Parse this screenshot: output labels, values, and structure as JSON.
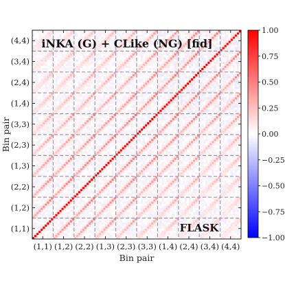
{
  "chart_data": {
    "type": "heatmap",
    "title": "iNKA (G) + CLike (NG) [fid]",
    "annotation": "FLASK",
    "xlabel": "Bin pair",
    "ylabel": "Bin pair",
    "categories": [
      "(1,1)",
      "(1,2)",
      "(2,2)",
      "(1,3)",
      "(2,3)",
      "(3,3)",
      "(1,4)",
      "(2,4)",
      "(3,4)",
      "(4,4)"
    ],
    "blocks_per_axis": 10,
    "bins_per_block": 10,
    "block_separator_lines": "dashed",
    "colormap": "bwr",
    "colorbar": {
      "min": -1.0,
      "max": 1.0,
      "ticks": [
        "1.00",
        "0.75",
        "0.50",
        "0.25",
        "0.00",
        "−0.25",
        "−0.50",
        "−0.75",
        "−1.00"
      ]
    },
    "diagonal_correlation": 1.0,
    "off_diagonal_block_correlation_range": [
      0.15,
      0.6
    ],
    "background_noise_range": [
      -0.12,
      0.12
    ]
  }
}
